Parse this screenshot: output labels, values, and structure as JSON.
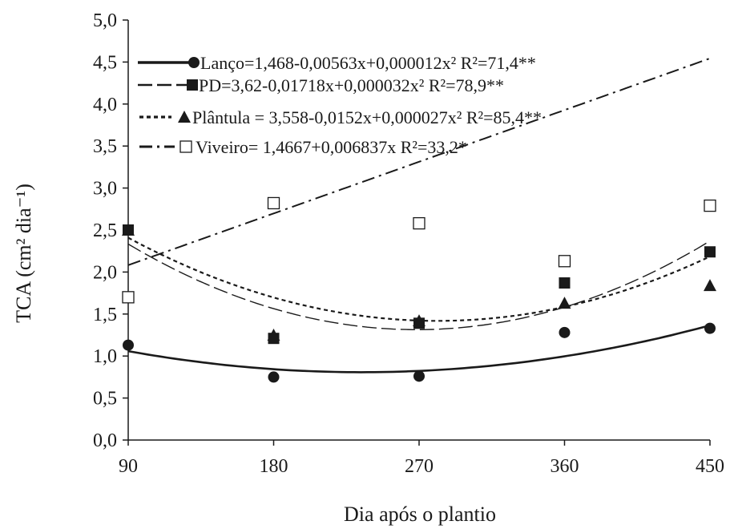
{
  "chart_data": {
    "type": "scatter",
    "xlabel": "Dia após o plantio",
    "ylabel": "TCA (cm² dia⁻¹)",
    "xlim": [
      90,
      450
    ],
    "ylim": [
      0,
      5
    ],
    "x_ticks": [
      "90",
      "180",
      "270",
      "360",
      "450"
    ],
    "y_ticks": [
      "0,0",
      "0,5",
      "1,0",
      "1,5",
      "2,0",
      "2,5",
      "3,0",
      "3,5",
      "4,0",
      "4,5",
      "5,0"
    ],
    "grid": false,
    "legend_position": "top-left",
    "x": [
      90,
      180,
      270,
      360,
      450
    ],
    "series": [
      {
        "name": "Lanço",
        "marker": "filled-circle",
        "line_style": "solid",
        "equation": "=1,468-0,00563x+0,000012x²  R²=71,4**",
        "values": [
          1.13,
          0.75,
          0.76,
          1.28,
          1.33
        ],
        "fit": {
          "kind": "quadratic",
          "coef": [
            1.468,
            -0.00563,
            1.2e-05
          ]
        }
      },
      {
        "name": "PD",
        "marker": "filled-square",
        "line_style": "long-dash",
        "equation": "=3,62-0,01718x+0,000032x²  R²=78,9**",
        "values": [
          2.5,
          1.21,
          1.39,
          1.87,
          2.24
        ],
        "fit": {
          "kind": "quadratic",
          "coef": [
            3.62,
            -0.01718,
            3.2e-05
          ]
        }
      },
      {
        "name": "Plântula",
        "marker": "filled-triangle",
        "line_style": "short-dash",
        "equation": " = 3,558-0,0152x+0,000027x²  R²=85,4**",
        "values": [
          2.5,
          1.25,
          1.42,
          1.63,
          1.84
        ],
        "fit": {
          "kind": "quadratic",
          "coef": [
            3.558,
            -0.0152,
            2.7e-05
          ]
        }
      },
      {
        "name": "Viveiro",
        "marker": "open-square",
        "line_style": "dash-dot",
        "equation": "= 1,4667+0,006837x  R²=33,2*",
        "values": [
          1.7,
          2.82,
          2.58,
          2.13,
          2.79
        ],
        "fit": {
          "kind": "linear",
          "coef": [
            1.4667,
            0.006837
          ]
        }
      }
    ]
  }
}
